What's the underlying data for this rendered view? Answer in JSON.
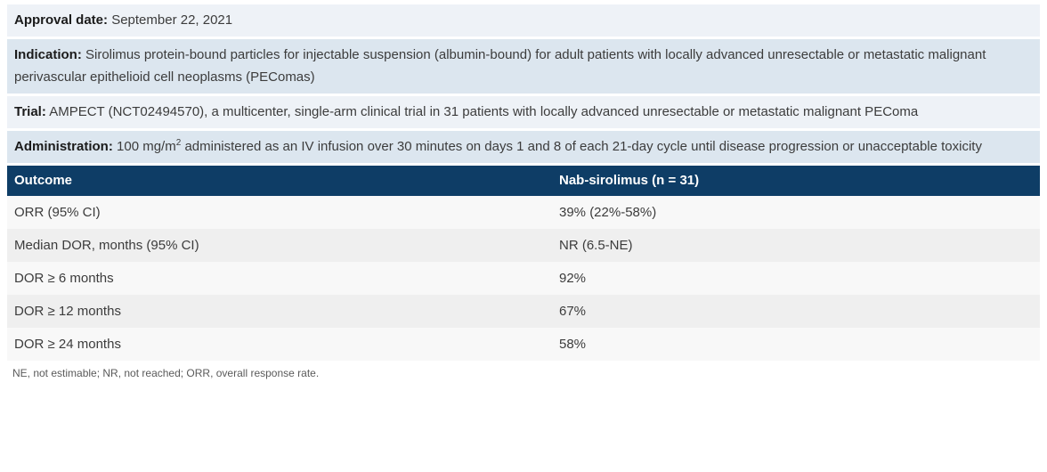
{
  "info": {
    "approval": {
      "label": "Approval date:",
      "text": "September 22, 2021"
    },
    "indication": {
      "label": "Indication:",
      "text": "Sirolimus protein-bound particles for injectable suspension (albumin-bound) for adult patients with locally advanced unresectable or metastatic malignant perivascular epithelioid cell neoplasms (PEComas)"
    },
    "trial": {
      "label": "Trial:",
      "text": "AMPECT (NCT02494570), a multicenter, single-arm clinical trial in 31 patients with locally advanced unresectable or metastatic malignant PEComa"
    },
    "administration": {
      "label": "Administration:",
      "before": "100 mg/m",
      "sup": "2",
      "after": " administered as an IV infusion over 30 minutes on days 1 and 8 of each 21-day cycle until disease progression or unacceptable toxicity"
    }
  },
  "table": {
    "headers": [
      "Outcome",
      "Nab-sirolimus (n = 31)"
    ],
    "rows": [
      [
        "ORR (95% CI)",
        "39% (22%-58%)"
      ],
      [
        "Median DOR, months (95% CI)",
        "NR (6.5-NE)"
      ],
      [
        "DOR ≥ 6 months",
        "92%"
      ],
      [
        "DOR ≥ 12 months",
        "67%"
      ],
      [
        "DOR ≥ 24 months",
        "58%"
      ]
    ]
  },
  "footnote": "NE, not estimable; NR, not reached; ORR, overall response rate.",
  "colors": {
    "header_navy": "#0e3d66",
    "row_light_blue": "#dce6ef",
    "row_pale_blue": "#eef2f7",
    "table_row_odd": "#f8f8f8",
    "table_row_even": "#efefef",
    "header_text": "#ffffff",
    "body_text": "#3c3c3c"
  }
}
